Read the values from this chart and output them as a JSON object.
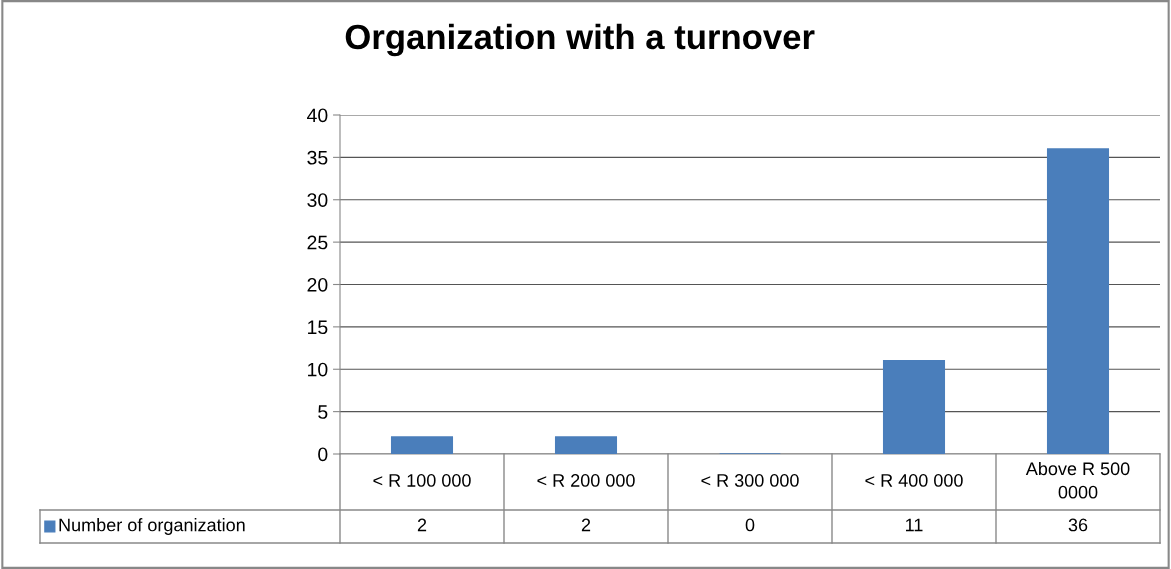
{
  "chart_data": {
    "type": "bar",
    "title": "Organization with a turnover",
    "categories": [
      "< R 100 000",
      "< R 200 000",
      "< R 300 000",
      "< R 400 000",
      "Above R 500 0000"
    ],
    "series": [
      {
        "name": "Number of organization",
        "color": "#4a7ebb",
        "values": [
          2,
          2,
          0,
          11,
          36
        ]
      }
    ],
    "ylim": [
      0,
      40
    ],
    "yticks": [
      0,
      5,
      10,
      15,
      20,
      25,
      30,
      35,
      40
    ],
    "grid": "y",
    "legend": "bottom",
    "data_labels": true
  }
}
